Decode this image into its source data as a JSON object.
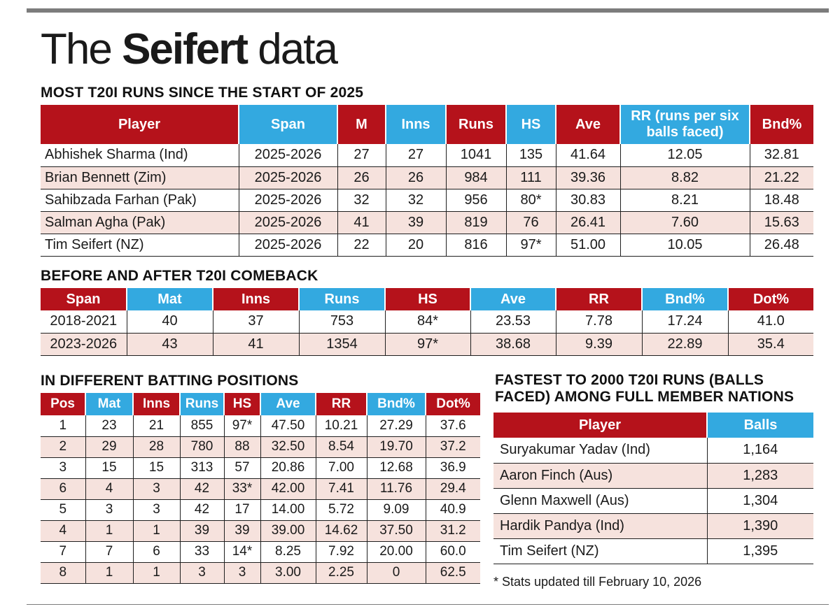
{
  "title": {
    "light_part": "The",
    "bold_part": "Seifert",
    "light_part2": "data"
  },
  "table_most_runs": {
    "heading": "MOST T20I RUNS SINCE THE START OF 2025",
    "columns": [
      "Player",
      "Span",
      "M",
      "Inns",
      "Runs",
      "HS",
      "Ave",
      "RR (runs per six balls faced)",
      "Bnd%"
    ],
    "rows": [
      [
        "Abhishek Sharma (Ind)",
        "2025-2026",
        "27",
        "27",
        "1041",
        "135",
        "41.64",
        "12.05",
        "32.81"
      ],
      [
        "Brian Bennett (Zim)",
        "2025-2026",
        "26",
        "26",
        "984",
        "111",
        "39.36",
        "8.82",
        "21.22"
      ],
      [
        "Sahibzada Farhan (Pak)",
        "2025-2026",
        "32",
        "32",
        "956",
        "80*",
        "30.83",
        "8.21",
        "18.48"
      ],
      [
        "Salman Agha (Pak)",
        "2025-2026",
        "41",
        "39",
        "819",
        "76",
        "26.41",
        "7.60",
        "15.63"
      ],
      [
        "Tim Seifert (NZ)",
        "2025-2026",
        "22",
        "20",
        "816",
        "97*",
        "51.00",
        "10.05",
        "26.48"
      ]
    ]
  },
  "table_comeback": {
    "heading": "BEFORE AND AFTER T20I COMEBACK",
    "columns": [
      "Span",
      "Mat",
      "Inns",
      "Runs",
      "HS",
      "Ave",
      "RR",
      "Bnd%",
      "Dot%"
    ],
    "rows": [
      [
        "2018-2021",
        "40",
        "37",
        "753",
        "84*",
        "23.53",
        "7.78",
        "17.24",
        "41.0"
      ],
      [
        "2023-2026",
        "43",
        "41",
        "1354",
        "97*",
        "38.68",
        "9.39",
        "22.89",
        "35.4"
      ]
    ]
  },
  "table_positions": {
    "heading": "IN DIFFERENT BATTING POSITIONS",
    "columns": [
      "Pos",
      "Mat",
      "Inns",
      "Runs",
      "HS",
      "Ave",
      "RR",
      "Bnd%",
      "Dot%"
    ],
    "rows": [
      [
        "1",
        "23",
        "21",
        "855",
        "97*",
        "47.50",
        "10.21",
        "27.29",
        "37.6"
      ],
      [
        "2",
        "29",
        "28",
        "780",
        "88",
        "32.50",
        "8.54",
        "19.70",
        "37.2"
      ],
      [
        "3",
        "15",
        "15",
        "313",
        "57",
        "20.86",
        "7.00",
        "12.68",
        "36.9"
      ],
      [
        "6",
        "4",
        "3",
        "42",
        "33*",
        "42.00",
        "7.41",
        "11.76",
        "29.4"
      ],
      [
        "5",
        "3",
        "3",
        "42",
        "17",
        "14.00",
        "5.72",
        "9.09",
        "40.9"
      ],
      [
        "4",
        "1",
        "1",
        "39",
        "39",
        "39.00",
        "14.62",
        "37.50",
        "31.2"
      ],
      [
        "7",
        "7",
        "6",
        "33",
        "14*",
        "8.25",
        "7.92",
        "20.00",
        "60.0"
      ],
      [
        "8",
        "1",
        "1",
        "3",
        "3",
        "3.00",
        "2.25",
        "0",
        "62.5"
      ]
    ]
  },
  "table_fastest": {
    "heading_line1": "FASTEST TO 2000 T20I RUNS (BALLS",
    "heading_line2": "FACED) AMONG FULL MEMBER NATIONS",
    "columns": [
      "Player",
      "Balls"
    ],
    "rows": [
      [
        "Suryakumar Yadav (Ind)",
        "1,164"
      ],
      [
        "Aaron Finch (Aus)",
        "1,283"
      ],
      [
        "Glenn Maxwell (Aus)",
        "1,304"
      ],
      [
        "Hardik Pandya (Ind)",
        "1,390"
      ],
      [
        "Tim Seifert (NZ)",
        "1,395"
      ]
    ]
  },
  "footnote": "* Stats updated till February 10, 2026",
  "colors": {
    "header_red": "#b5121b",
    "header_blue": "#33a9e0",
    "row_tint": "#f6e2dd",
    "rule_grey": "#7c7c7c"
  }
}
